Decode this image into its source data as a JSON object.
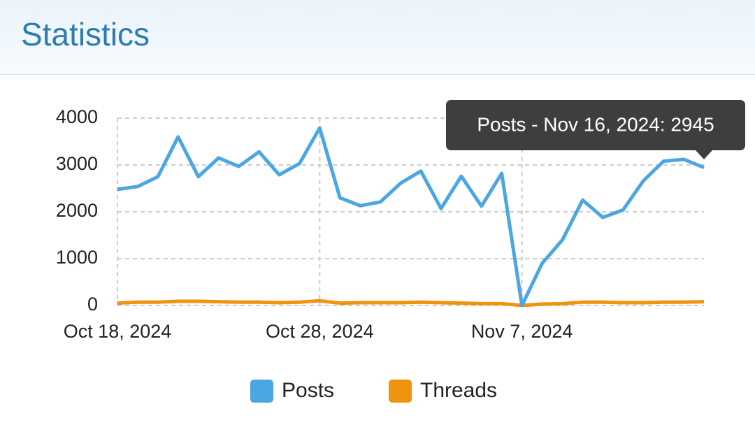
{
  "header": {
    "title": "Statistics"
  },
  "chart_data": {
    "type": "line",
    "x": [
      "Oct 18, 2024",
      "Oct 19, 2024",
      "Oct 20, 2024",
      "Oct 21, 2024",
      "Oct 22, 2024",
      "Oct 23, 2024",
      "Oct 24, 2024",
      "Oct 25, 2024",
      "Oct 26, 2024",
      "Oct 27, 2024",
      "Oct 28, 2024",
      "Oct 29, 2024",
      "Oct 30, 2024",
      "Oct 31, 2024",
      "Nov 1, 2024",
      "Nov 2, 2024",
      "Nov 3, 2024",
      "Nov 4, 2024",
      "Nov 5, 2024",
      "Nov 6, 2024",
      "Nov 7, 2024",
      "Nov 8, 2024",
      "Nov 9, 2024",
      "Nov 10, 2024",
      "Nov 11, 2024",
      "Nov 12, 2024",
      "Nov 13, 2024",
      "Nov 14, 2024",
      "Nov 15, 2024",
      "Nov 16, 2024"
    ],
    "xtick_indices": [
      0,
      10,
      20
    ],
    "series": [
      {
        "name": "Posts",
        "color": "#4ba6e2",
        "values": [
          2480,
          2540,
          2750,
          3600,
          2750,
          3150,
          2970,
          3280,
          2790,
          3030,
          3790,
          2300,
          2130,
          2210,
          2610,
          2870,
          2070,
          2760,
          2120,
          2820,
          0,
          900,
          1400,
          2250,
          1880,
          2040,
          2660,
          3080,
          3120,
          2945
        ]
      },
      {
        "name": "Threads",
        "color": "#f0930e",
        "values": [
          50,
          70,
          70,
          90,
          90,
          80,
          70,
          70,
          60,
          70,
          100,
          50,
          60,
          60,
          60,
          70,
          60,
          50,
          40,
          40,
          0,
          30,
          40,
          70,
          70,
          60,
          60,
          70,
          70,
          80
        ]
      }
    ],
    "ylim": [
      0,
      4000
    ],
    "yticks": [
      0,
      1000,
      2000,
      3000,
      4000
    ],
    "grid": true,
    "tooltip": "Posts - Nov 16, 2024: 2945"
  }
}
